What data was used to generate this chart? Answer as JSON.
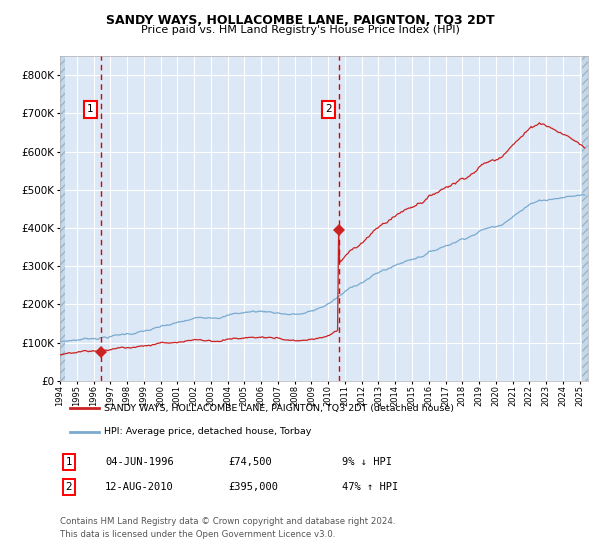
{
  "title": "SANDY WAYS, HOLLACOMBE LANE, PAIGNTON, TQ3 2DT",
  "subtitle": "Price paid vs. HM Land Registry's House Price Index (HPI)",
  "legend_line1": "SANDY WAYS, HOLLACOMBE LANE, PAIGNTON, TQ3 2DT (detached house)",
  "legend_line2": "HPI: Average price, detached house, Torbay",
  "footnote1": "Contains HM Land Registry data © Crown copyright and database right 2024.",
  "footnote2": "This data is licensed under the Open Government Licence v3.0.",
  "purchase1_date": 1996.42,
  "purchase1_price": 74500,
  "purchase2_date": 2010.62,
  "purchase2_price": 395000,
  "hpi_color": "#7aaad0",
  "price_color": "#cc2222",
  "dashed_color": "#dd0000",
  "bg_color": "#dce8f5",
  "ylim_max": 850000,
  "xlim_min": 1994.0,
  "xlim_max": 2025.5,
  "box1_num": "1",
  "box2_num": "2",
  "table1_date": "04-JUN-1996",
  "table1_price": "£74,500",
  "table1_hpi": "9% ↓ HPI",
  "table2_date": "12-AUG-2010",
  "table2_price": "£395,000",
  "table2_hpi": "47% ↑ HPI"
}
